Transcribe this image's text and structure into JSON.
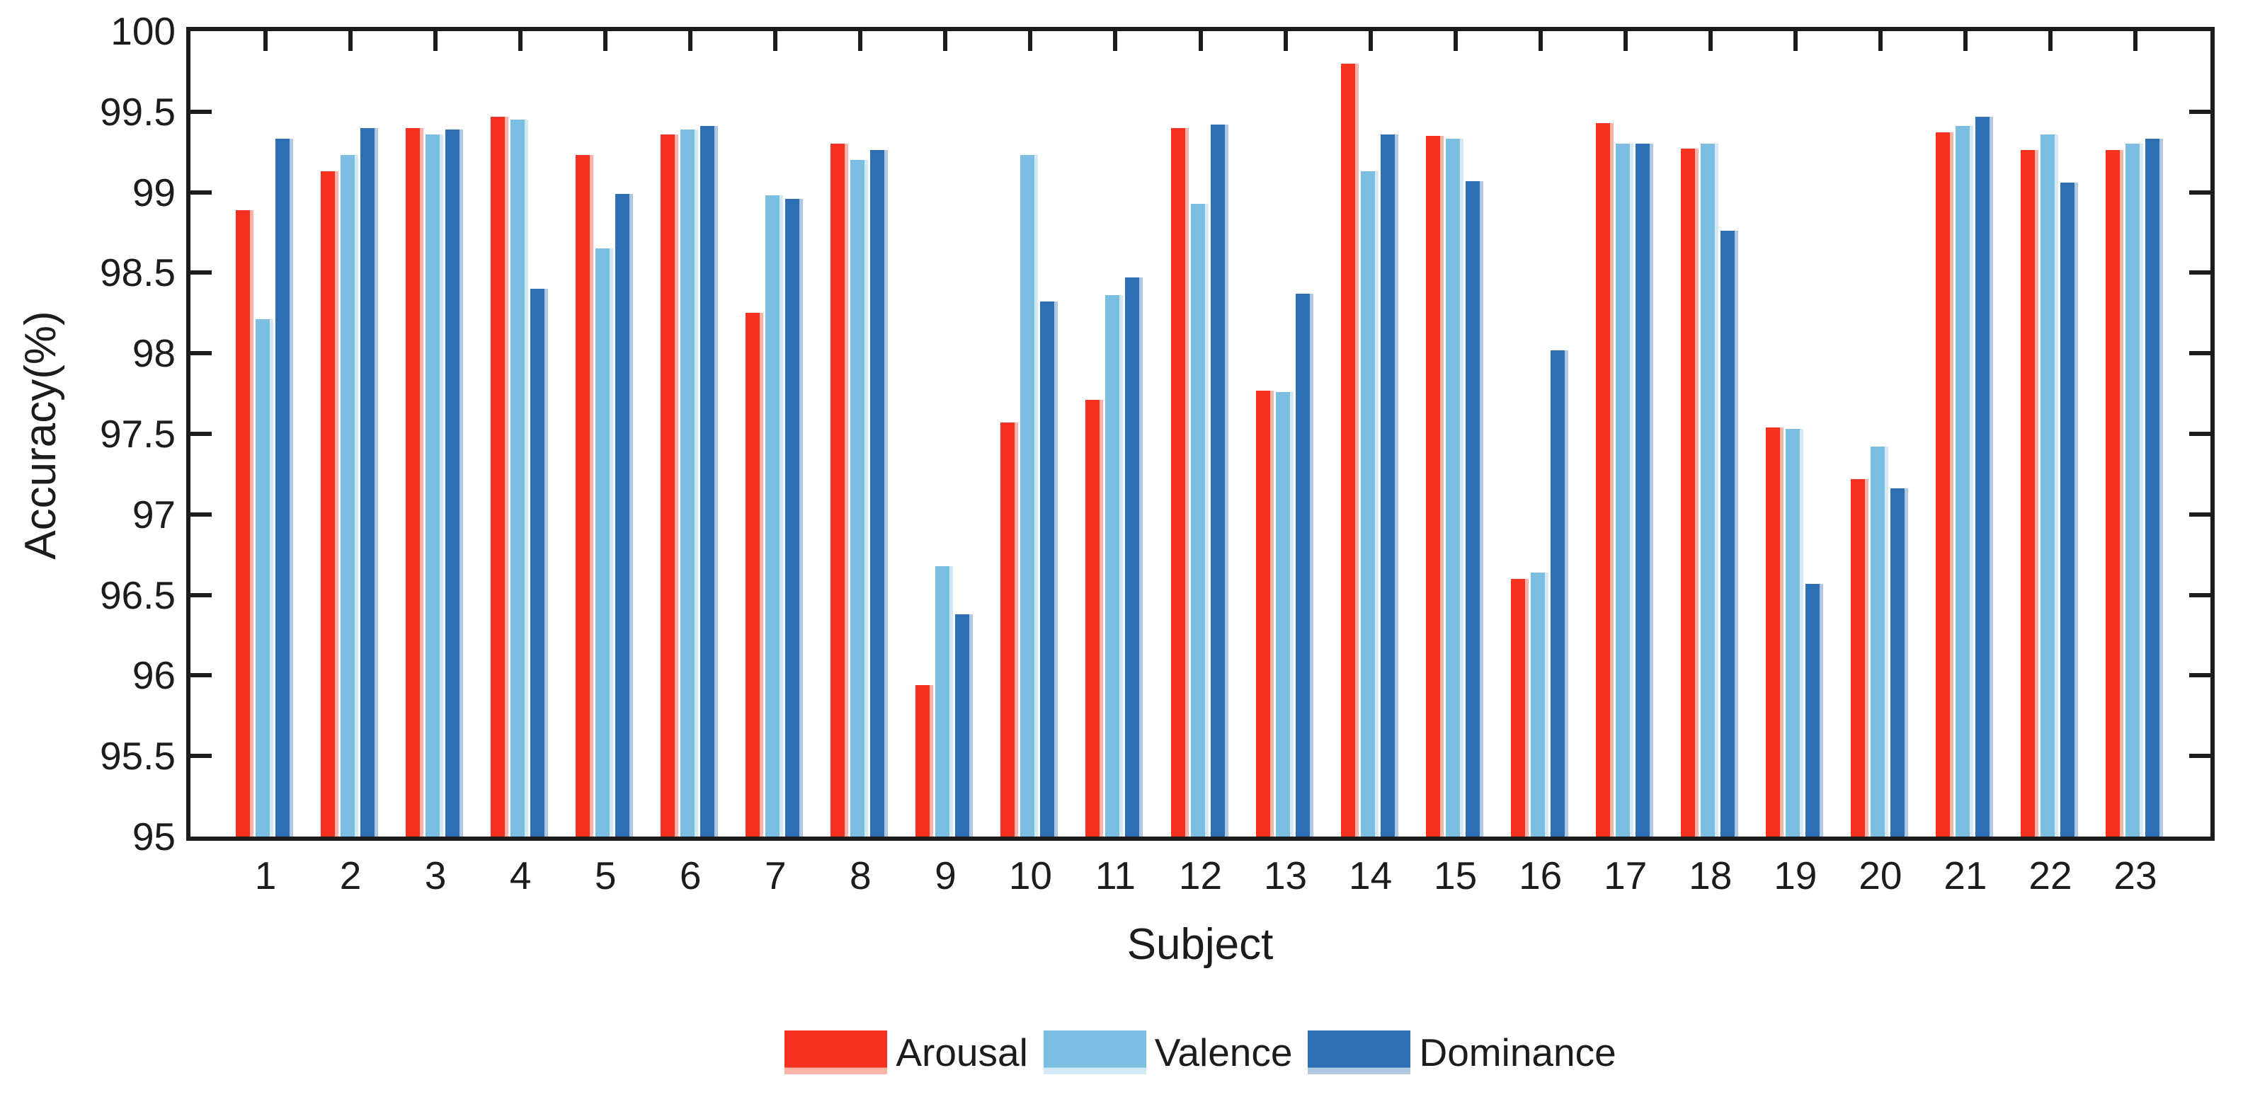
{
  "figure": {
    "background": "#ffffff",
    "axis_color": "#1c1c1c"
  },
  "chart_data": {
    "type": "bar",
    "title": "",
    "xlabel": "Subject",
    "ylabel": "Accuracy(%)",
    "ylim": [
      95,
      100
    ],
    "ytick_step": 0.5,
    "ytick_labels": [
      "95",
      "95.5",
      "96",
      "96.5",
      "97",
      "97.5",
      "98",
      "98.5",
      "99",
      "99.5",
      "100"
    ],
    "categories": [
      "1",
      "2",
      "3",
      "4",
      "5",
      "6",
      "7",
      "8",
      "9",
      "10",
      "11",
      "12",
      "13",
      "14",
      "15",
      "16",
      "17",
      "18",
      "19",
      "20",
      "21",
      "22",
      "23"
    ],
    "series": [
      {
        "name": "Arousal",
        "color": "#f5301f",
        "edge_color": "#fcb3aa",
        "values": [
          98.89,
          99.13,
          99.4,
          99.47,
          99.23,
          99.36,
          98.25,
          99.3,
          95.94,
          97.57,
          97.71,
          99.4,
          97.77,
          99.8,
          99.35,
          96.6,
          99.43,
          99.27,
          97.54,
          97.22,
          99.37,
          99.26,
          99.26
        ]
      },
      {
        "name": "Valence",
        "color": "#7cbee2",
        "edge_color": "#d4e9f6",
        "values": [
          98.21,
          99.23,
          99.36,
          99.45,
          98.65,
          99.39,
          98.98,
          99.2,
          96.68,
          99.23,
          98.36,
          98.93,
          97.76,
          99.13,
          99.33,
          96.64,
          99.3,
          99.3,
          97.53,
          97.42,
          99.41,
          99.36,
          99.3
        ]
      },
      {
        "name": "Dominance",
        "color": "#2e6fb3",
        "edge_color": "#b0c8e2",
        "values": [
          99.33,
          99.4,
          99.39,
          98.4,
          98.99,
          99.41,
          98.96,
          99.26,
          96.38,
          98.32,
          98.47,
          99.42,
          98.37,
          99.36,
          99.07,
          98.02,
          99.3,
          98.76,
          96.57,
          97.16,
          99.47,
          99.06,
          99.33
        ]
      }
    ],
    "legend_position": "bottom-center",
    "grid": false
  }
}
